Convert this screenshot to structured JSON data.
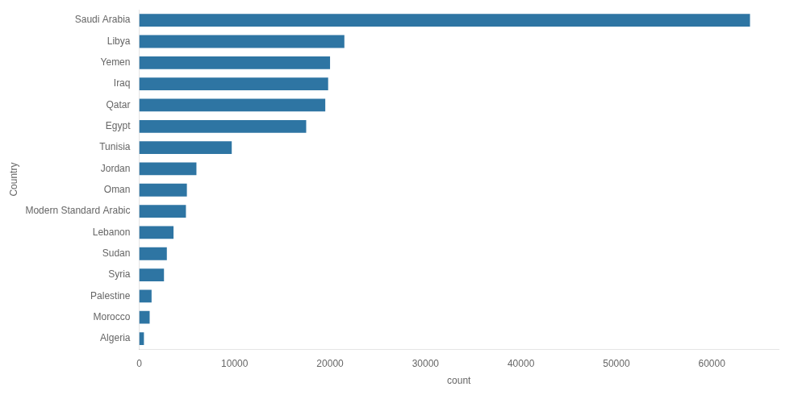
{
  "chart_data": {
    "type": "bar",
    "orientation": "horizontal",
    "categories": [
      "Algeria",
      "Morocco",
      "Palestine",
      "Syria",
      "Sudan",
      "Lebanon",
      "Modern Standard Arabic",
      "Oman",
      "Jordan",
      "Tunisia",
      "Egypt",
      "Qatar",
      "Iraq",
      "Yemen",
      "Libya",
      "Saudi Arabia"
    ],
    "values": [
      500,
      1100,
      1300,
      2600,
      2900,
      3600,
      4900,
      5000,
      6000,
      9700,
      17500,
      19500,
      19800,
      20000,
      21500,
      64000
    ],
    "color": "#2e75a3",
    "xlabel": "count",
    "ylabel": "Country",
    "xlim": [
      0,
      67000
    ],
    "xticks": [
      0,
      10000,
      20000,
      30000,
      40000,
      50000,
      60000
    ],
    "grid": false
  }
}
